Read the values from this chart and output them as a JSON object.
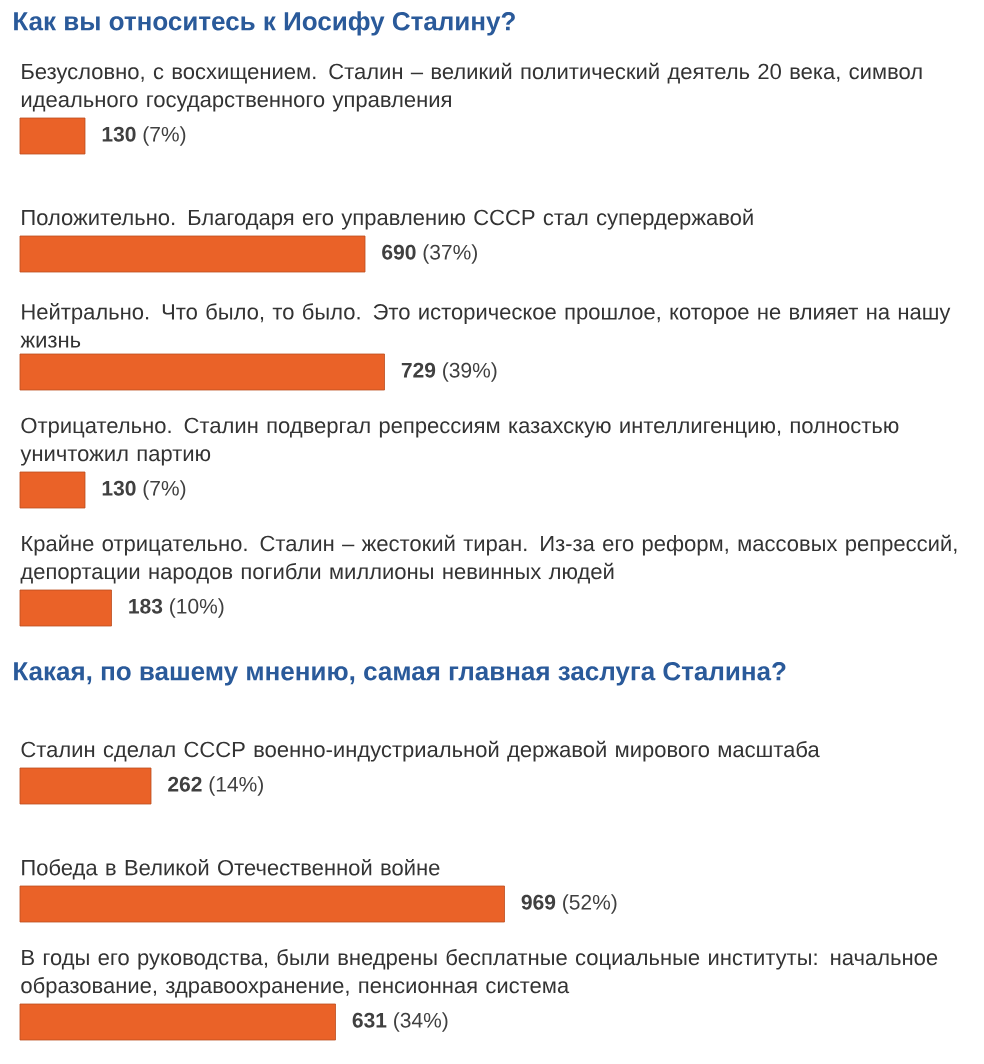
{
  "chart_data": [
    {
      "type": "bar",
      "orientation": "horizontal",
      "title": "Как вы относитесь к Иосифу Сталину?",
      "categories": [
        "Безусловно, с восхищением. Сталин – великий политический деятель 20 века, символ идеального государственного управления",
        "Положительно. Благодаря его управлению СССР стал супердержавой",
        "Нейтрально. Что было, то было. Это историческое прошлое, которое не влияет на нашу жизнь",
        "Отрицательно. Сталин подвергал репрессиям казахскую интеллигенцию, полностью уничтожил партию",
        "Крайне отрицательно. Сталин – жестокий тиран. Из-за его реформ, массовых репрессий, депортации народов погибли миллионы невинных людей"
      ],
      "values": [
        130,
        690,
        729,
        130,
        183
      ],
      "value_labels": [
        "**130** (7%)",
        "**690** (37%)",
        "**729** (39%)",
        "**130** (7%)",
        "**183** (10%)"
      ],
      "color": "#ea6228",
      "tick_labels": false
    },
    {
      "type": "bar",
      "orientation": "horizontal",
      "title": "Какая, по вашему мнению, самая главная заслуга Сталина?",
      "categories": [
        "Сталин сделал СССР военно-индустриальной державой мирового масштаба",
        "Победа в Великой Отечественной войне",
        "В годы его руководства, были внедрены бесплатные социальные институты: начальное образование, здравоохранение, пенсионная система"
      ],
      "values": [
        262,
        969,
        631
      ],
      "value_labels": [
        "**262** (14%)",
        "**969** (52%)",
        "**631** (34%)"
      ],
      "color": "#ea6228",
      "tick_labels": false
    }
  ]
}
